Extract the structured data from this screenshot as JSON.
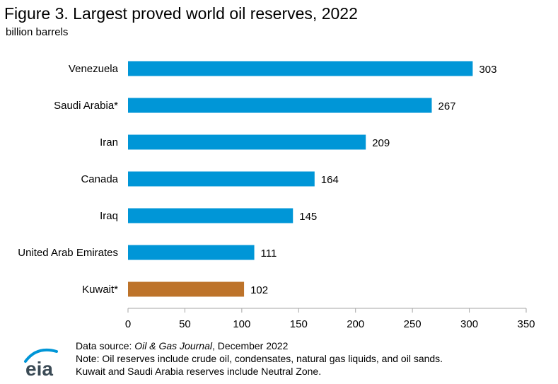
{
  "chart_data": {
    "type": "bar",
    "orientation": "horizontal",
    "title": "Figure 3. Largest proved world oil reserves, 2022",
    "unit_label": "billion barrels",
    "categories": [
      "Venezuela",
      "Saudi Arabia*",
      "Iran",
      "Canada",
      "Iraq",
      "United Arab Emirates",
      "Kuwait*"
    ],
    "values": [
      303,
      267,
      209,
      164,
      145,
      111,
      102
    ],
    "bar_colors": [
      "#0096d7",
      "#0096d7",
      "#0096d7",
      "#0096d7",
      "#0096d7",
      "#0096d7",
      "#bd732a"
    ],
    "xlim": [
      0,
      350
    ],
    "xticks": [
      0,
      50,
      100,
      150,
      200,
      250,
      300,
      350
    ],
    "grid": false,
    "legend": "none"
  },
  "footer": {
    "source_prefix": "Data source: ",
    "source_italic": "Oil & Gas Journal",
    "source_suffix": ", December 2022",
    "note1": "Note: Oil reserves include crude oil, condensates, natural gas liquids, and oil sands.",
    "note2": "Kuwait and Saudi Arabia reserves include Neutral Zone."
  },
  "logo": {
    "text": "eia",
    "color": "#3a4a55",
    "arc_color": "#0096d7"
  }
}
